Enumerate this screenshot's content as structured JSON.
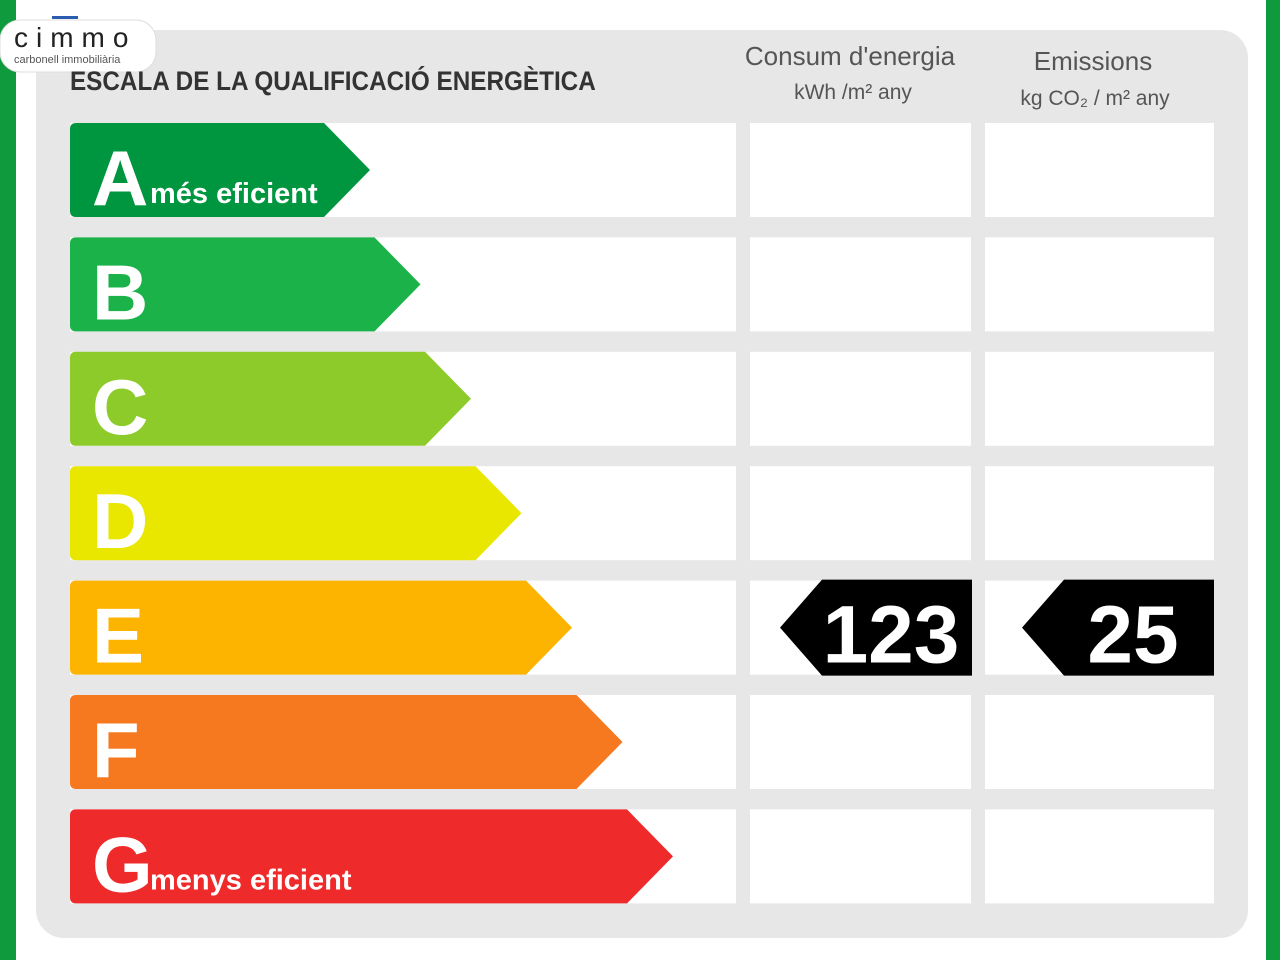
{
  "logo": {
    "name": "cimmo",
    "tagline": "carbonell immobiliària"
  },
  "title": "ESCALA DE LA QUALIFICACIÓ ENERGÈTICA",
  "columns": [
    {
      "title": "Consum d'energia",
      "unit": "kWh /m² any"
    },
    {
      "title": "Emissions",
      "unit": "kg CO₂ / m² any"
    }
  ],
  "rows": [
    {
      "letter": "A",
      "label": "més eficient",
      "color": "#00963f"
    },
    {
      "letter": "B",
      "color": "#1bb24a"
    },
    {
      "letter": "C",
      "color": "#8ccb2a"
    },
    {
      "letter": "D",
      "color": "#e9e600"
    },
    {
      "letter": "E",
      "color": "#fdb400",
      "consumption": "123",
      "emissions": "25"
    },
    {
      "letter": "F",
      "color": "#f6781f"
    },
    {
      "letter": "G",
      "label": "menys eficient",
      "color": "#ef2a2a"
    }
  ]
}
